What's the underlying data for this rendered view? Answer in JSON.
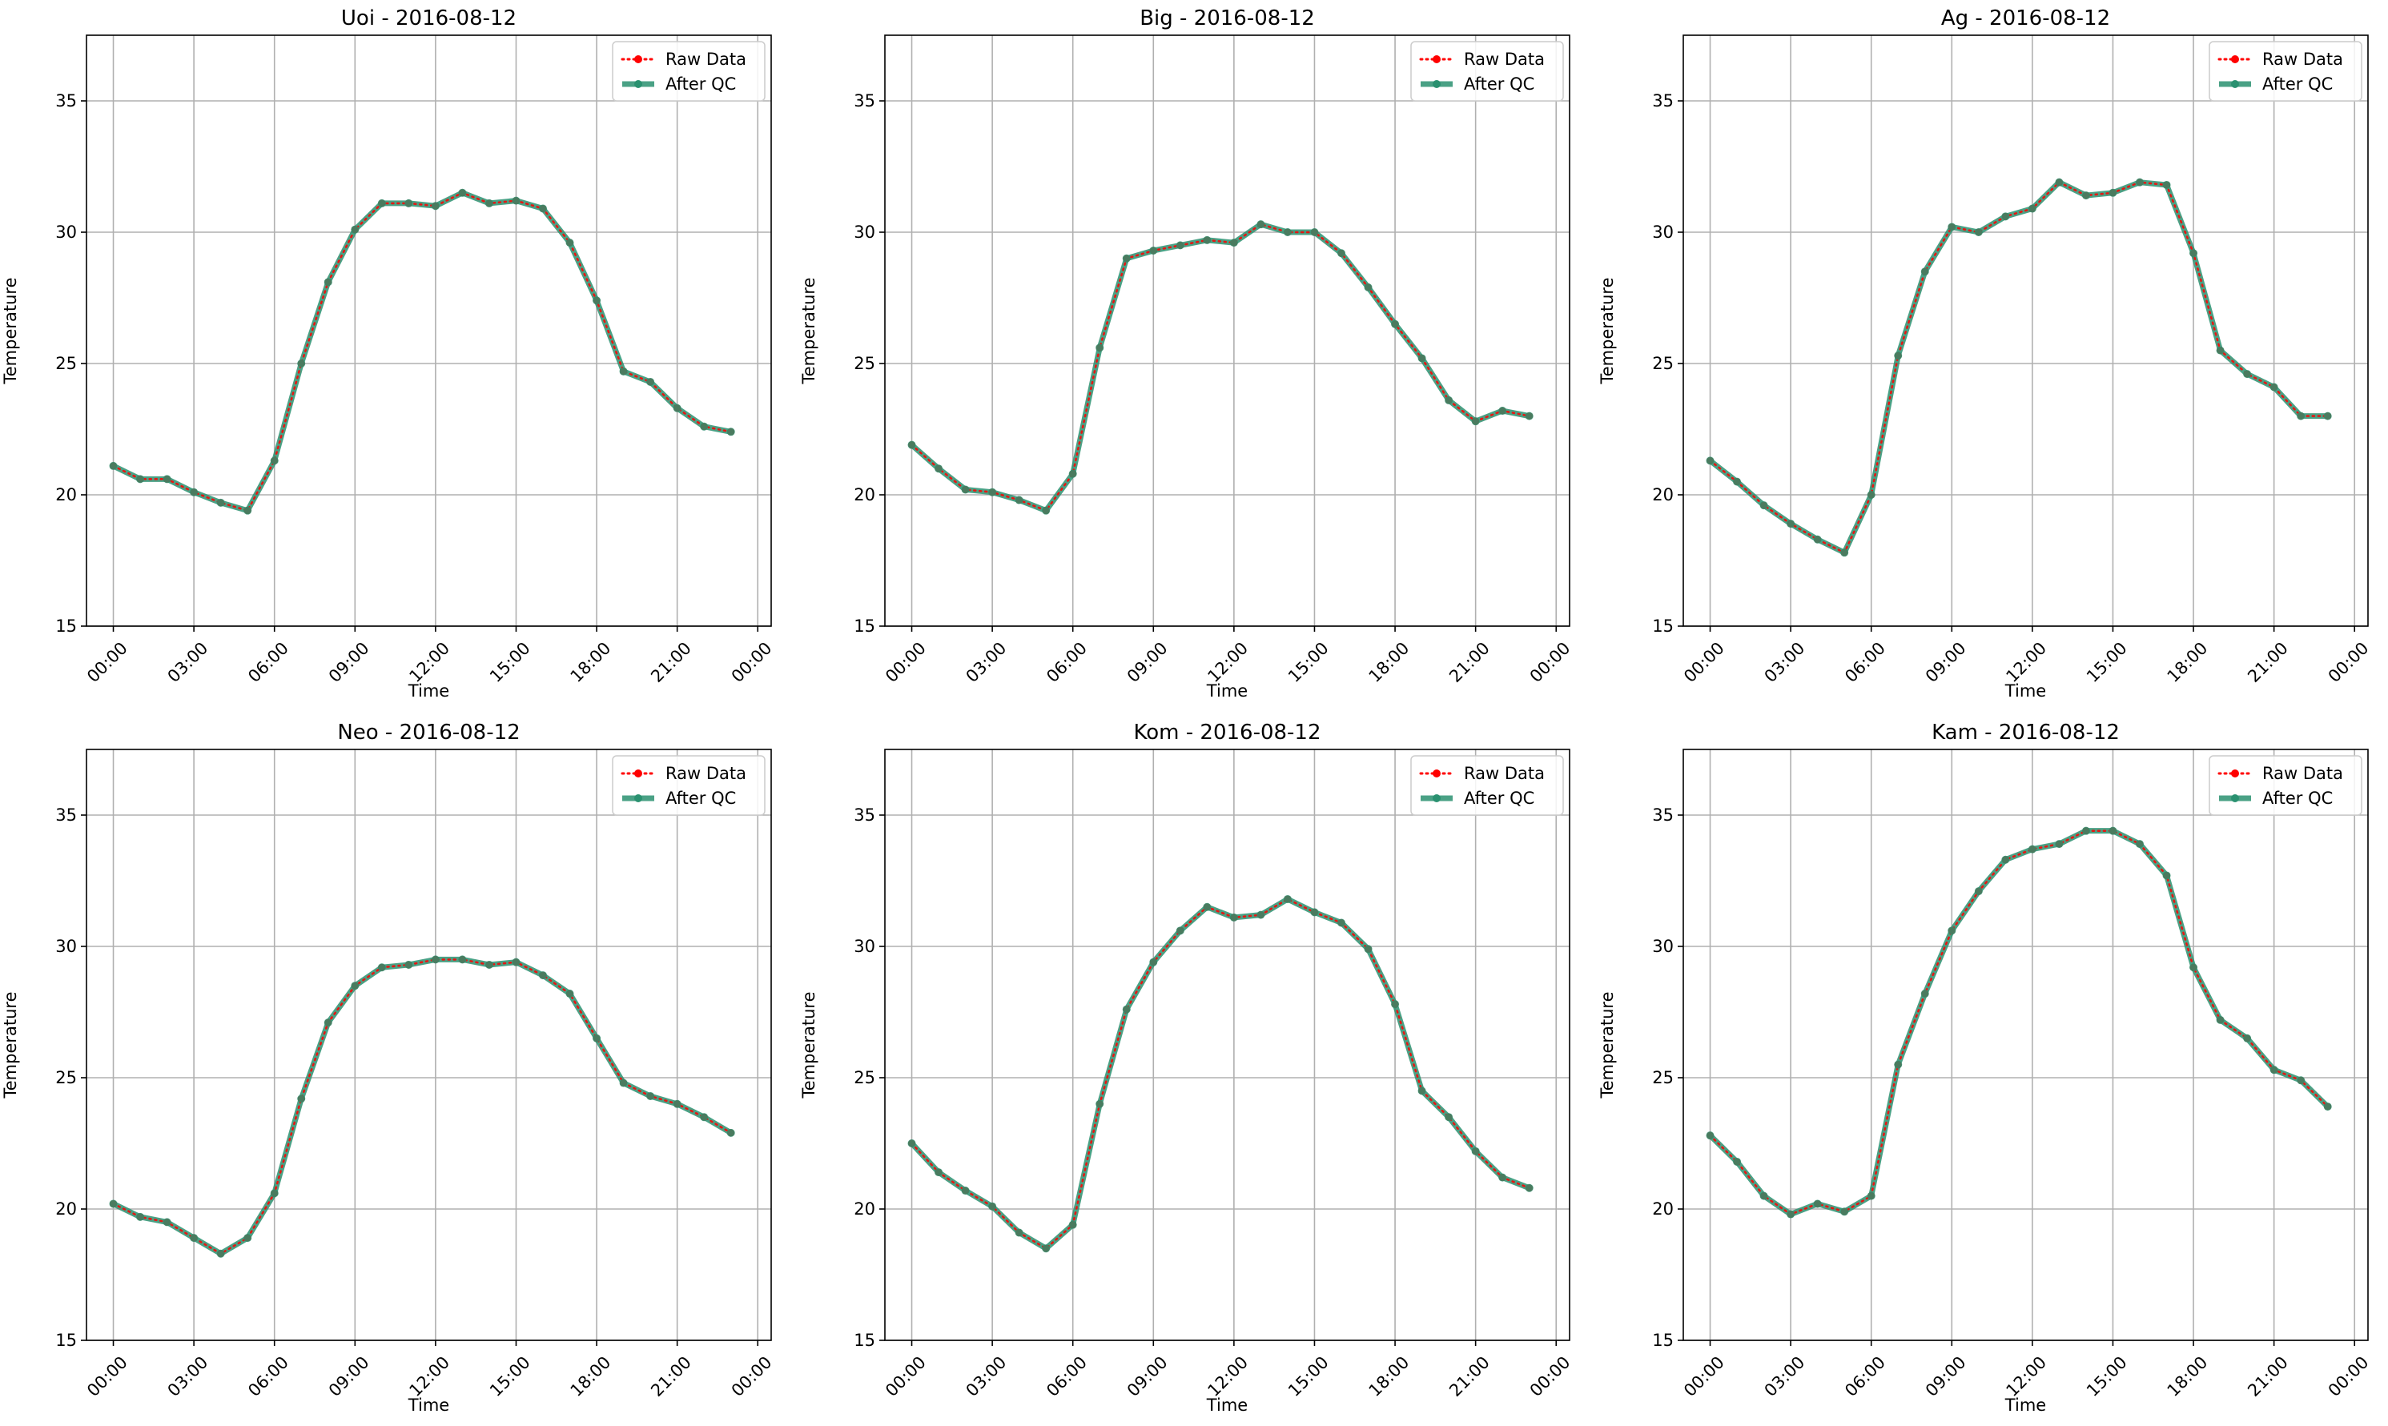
{
  "figure": {
    "colors": {
      "raw": "#ff0000",
      "qc": "#2a9170",
      "grid": "#b0b0b0"
    }
  },
  "chart_data": [
    {
      "type": "line",
      "title": "Uoi - 2016-08-12",
      "xlabel": "Time",
      "ylabel": "Temperature",
      "ylim": [
        15,
        37.5
      ],
      "yticks": [
        15,
        20,
        25,
        30,
        35
      ],
      "xlim": [
        "23:00",
        "00:30"
      ],
      "xticks": [
        "00:00",
        "03:00",
        "06:00",
        "09:00",
        "12:00",
        "15:00",
        "18:00",
        "21:00",
        "00:00"
      ],
      "grid": true,
      "legend": "upper right",
      "x": [
        "00:00",
        "01:00",
        "02:00",
        "03:00",
        "04:00",
        "05:00",
        "06:00",
        "07:00",
        "08:00",
        "09:00",
        "10:00",
        "11:00",
        "12:00",
        "13:00",
        "14:00",
        "15:00",
        "16:00",
        "17:00",
        "18:00",
        "19:00",
        "20:00",
        "21:00",
        "22:00",
        "23:00"
      ],
      "series": [
        {
          "name": "Raw Data",
          "values": [
            21.1,
            20.6,
            20.6,
            20.1,
            19.7,
            19.4,
            21.3,
            25.0,
            28.1,
            30.1,
            31.1,
            31.1,
            31.0,
            31.5,
            31.1,
            31.2,
            30.9,
            29.6,
            27.4,
            24.7,
            24.3,
            23.3,
            22.6,
            22.4
          ]
        },
        {
          "name": "After QC",
          "values": [
            21.1,
            20.6,
            20.6,
            20.1,
            19.7,
            19.4,
            21.3,
            25.0,
            28.1,
            30.1,
            31.1,
            31.1,
            31.0,
            31.5,
            31.1,
            31.2,
            30.9,
            29.6,
            27.4,
            24.7,
            24.3,
            23.3,
            22.6,
            22.4
          ]
        }
      ]
    },
    {
      "type": "line",
      "title": "Big - 2016-08-12",
      "xlabel": "Time",
      "ylabel": "Temperature",
      "ylim": [
        15,
        37.5
      ],
      "yticks": [
        15,
        20,
        25,
        30,
        35
      ],
      "xlim": [
        "23:00",
        "00:30"
      ],
      "xticks": [
        "00:00",
        "03:00",
        "06:00",
        "09:00",
        "12:00",
        "15:00",
        "18:00",
        "21:00",
        "00:00"
      ],
      "grid": true,
      "legend": "upper right",
      "x": [
        "00:00",
        "01:00",
        "02:00",
        "03:00",
        "04:00",
        "05:00",
        "06:00",
        "07:00",
        "08:00",
        "09:00",
        "10:00",
        "11:00",
        "12:00",
        "13:00",
        "14:00",
        "15:00",
        "16:00",
        "17:00",
        "18:00",
        "19:00",
        "20:00",
        "21:00",
        "22:00",
        "23:00"
      ],
      "series": [
        {
          "name": "Raw Data",
          "values": [
            21.9,
            21.0,
            20.2,
            20.1,
            19.8,
            19.4,
            20.8,
            25.6,
            29.0,
            29.3,
            29.5,
            29.7,
            29.6,
            30.3,
            30.0,
            30.0,
            29.2,
            27.9,
            26.5,
            25.2,
            23.6,
            22.8,
            23.2,
            23.0
          ]
        },
        {
          "name": "After QC",
          "values": [
            21.9,
            21.0,
            20.2,
            20.1,
            19.8,
            19.4,
            20.8,
            25.6,
            29.0,
            29.3,
            29.5,
            29.7,
            29.6,
            30.3,
            30.0,
            30.0,
            29.2,
            27.9,
            26.5,
            25.2,
            23.6,
            22.8,
            23.2,
            23.0
          ]
        }
      ]
    },
    {
      "type": "line",
      "title": "Ag - 2016-08-12",
      "xlabel": "Time",
      "ylabel": "Temperature",
      "ylim": [
        15,
        37.5
      ],
      "yticks": [
        15,
        20,
        25,
        30,
        35
      ],
      "xlim": [
        "23:00",
        "00:30"
      ],
      "xticks": [
        "00:00",
        "03:00",
        "06:00",
        "09:00",
        "12:00",
        "15:00",
        "18:00",
        "21:00",
        "00:00"
      ],
      "grid": true,
      "legend": "upper right",
      "x": [
        "00:00",
        "01:00",
        "02:00",
        "03:00",
        "04:00",
        "05:00",
        "06:00",
        "07:00",
        "08:00",
        "09:00",
        "10:00",
        "11:00",
        "12:00",
        "13:00",
        "14:00",
        "15:00",
        "16:00",
        "17:00",
        "18:00",
        "19:00",
        "20:00",
        "21:00",
        "22:00",
        "23:00"
      ],
      "series": [
        {
          "name": "Raw Data",
          "values": [
            21.3,
            20.5,
            19.6,
            18.9,
            18.3,
            17.8,
            20.0,
            25.3,
            28.5,
            30.2,
            30.0,
            30.6,
            30.9,
            31.9,
            31.4,
            31.5,
            31.9,
            31.8,
            29.2,
            25.5,
            24.6,
            24.1,
            23.0,
            23.0
          ]
        },
        {
          "name": "After QC",
          "values": [
            21.3,
            20.5,
            19.6,
            18.9,
            18.3,
            17.8,
            20.0,
            25.3,
            28.5,
            30.2,
            30.0,
            30.6,
            30.9,
            31.9,
            31.4,
            31.5,
            31.9,
            31.8,
            29.2,
            25.5,
            24.6,
            24.1,
            23.0,
            23.0
          ]
        }
      ]
    },
    {
      "type": "line",
      "title": "Neo - 2016-08-12",
      "xlabel": "Time",
      "ylabel": "Temperature",
      "ylim": [
        15,
        37.5
      ],
      "yticks": [
        15,
        20,
        25,
        30,
        35
      ],
      "xlim": [
        "23:00",
        "00:30"
      ],
      "xticks": [
        "00:00",
        "03:00",
        "06:00",
        "09:00",
        "12:00",
        "15:00",
        "18:00",
        "21:00",
        "00:00"
      ],
      "grid": true,
      "legend": "upper right",
      "x": [
        "00:00",
        "01:00",
        "02:00",
        "03:00",
        "04:00",
        "05:00",
        "06:00",
        "07:00",
        "08:00",
        "09:00",
        "10:00",
        "11:00",
        "12:00",
        "13:00",
        "14:00",
        "15:00",
        "16:00",
        "17:00",
        "18:00",
        "19:00",
        "20:00",
        "21:00",
        "22:00",
        "23:00"
      ],
      "series": [
        {
          "name": "Raw Data",
          "values": [
            20.2,
            19.7,
            19.5,
            18.9,
            18.3,
            18.9,
            20.6,
            24.2,
            27.1,
            28.5,
            29.2,
            29.3,
            29.5,
            29.5,
            29.3,
            29.4,
            28.9,
            28.2,
            26.5,
            24.8,
            24.3,
            24.0,
            23.5,
            22.9
          ]
        },
        {
          "name": "After QC",
          "values": [
            20.2,
            19.7,
            19.5,
            18.9,
            18.3,
            18.9,
            20.6,
            24.2,
            27.1,
            28.5,
            29.2,
            29.3,
            29.5,
            29.5,
            29.3,
            29.4,
            28.9,
            28.2,
            26.5,
            24.8,
            24.3,
            24.0,
            23.5,
            22.9
          ]
        }
      ]
    },
    {
      "type": "line",
      "title": "Kom - 2016-08-12",
      "xlabel": "Time",
      "ylabel": "Temperature",
      "ylim": [
        15,
        37.5
      ],
      "yticks": [
        15,
        20,
        25,
        30,
        35
      ],
      "xlim": [
        "23:00",
        "00:30"
      ],
      "xticks": [
        "00:00",
        "03:00",
        "06:00",
        "09:00",
        "12:00",
        "15:00",
        "18:00",
        "21:00",
        "00:00"
      ],
      "grid": true,
      "legend": "upper right",
      "x": [
        "00:00",
        "01:00",
        "02:00",
        "03:00",
        "04:00",
        "05:00",
        "06:00",
        "07:00",
        "08:00",
        "09:00",
        "10:00",
        "11:00",
        "12:00",
        "13:00",
        "14:00",
        "15:00",
        "16:00",
        "17:00",
        "18:00",
        "19:00",
        "20:00",
        "21:00",
        "22:00",
        "23:00"
      ],
      "series": [
        {
          "name": "Raw Data",
          "values": [
            22.5,
            21.4,
            20.7,
            20.1,
            19.1,
            18.5,
            19.4,
            24.0,
            27.6,
            29.4,
            30.6,
            31.5,
            31.1,
            31.2,
            31.8,
            31.3,
            30.9,
            29.9,
            27.8,
            24.5,
            23.5,
            22.2,
            21.2,
            20.8
          ]
        },
        {
          "name": "After QC",
          "values": [
            22.5,
            21.4,
            20.7,
            20.1,
            19.1,
            18.5,
            19.4,
            24.0,
            27.6,
            29.4,
            30.6,
            31.5,
            31.1,
            31.2,
            31.8,
            31.3,
            30.9,
            29.9,
            27.8,
            24.5,
            23.5,
            22.2,
            21.2,
            20.8
          ]
        }
      ]
    },
    {
      "type": "line",
      "title": "Kam - 2016-08-12",
      "xlabel": "Time",
      "ylabel": "Temperature",
      "ylim": [
        15,
        37.5
      ],
      "yticks": [
        15,
        20,
        25,
        30,
        35
      ],
      "xlim": [
        "23:00",
        "00:30"
      ],
      "xticks": [
        "00:00",
        "03:00",
        "06:00",
        "09:00",
        "12:00",
        "15:00",
        "18:00",
        "21:00",
        "00:00"
      ],
      "grid": true,
      "legend": "upper right",
      "x": [
        "00:00",
        "01:00",
        "02:00",
        "03:00",
        "04:00",
        "05:00",
        "06:00",
        "07:00",
        "08:00",
        "09:00",
        "10:00",
        "11:00",
        "12:00",
        "13:00",
        "14:00",
        "15:00",
        "16:00",
        "17:00",
        "18:00",
        "19:00",
        "20:00",
        "21:00",
        "22:00",
        "23:00"
      ],
      "series": [
        {
          "name": "Raw Data",
          "values": [
            22.8,
            21.8,
            20.5,
            19.8,
            20.2,
            19.9,
            20.5,
            25.5,
            28.2,
            30.6,
            32.1,
            33.3,
            33.7,
            33.9,
            34.4,
            34.4,
            33.9,
            32.7,
            29.2,
            27.2,
            26.5,
            25.3,
            24.9,
            23.9
          ]
        },
        {
          "name": "After QC",
          "values": [
            22.8,
            21.8,
            20.5,
            19.8,
            20.2,
            19.9,
            20.5,
            25.5,
            28.2,
            30.6,
            32.1,
            33.3,
            33.7,
            33.9,
            34.4,
            34.4,
            33.9,
            32.7,
            29.2,
            27.2,
            26.5,
            25.3,
            24.9,
            23.9
          ]
        }
      ]
    }
  ]
}
